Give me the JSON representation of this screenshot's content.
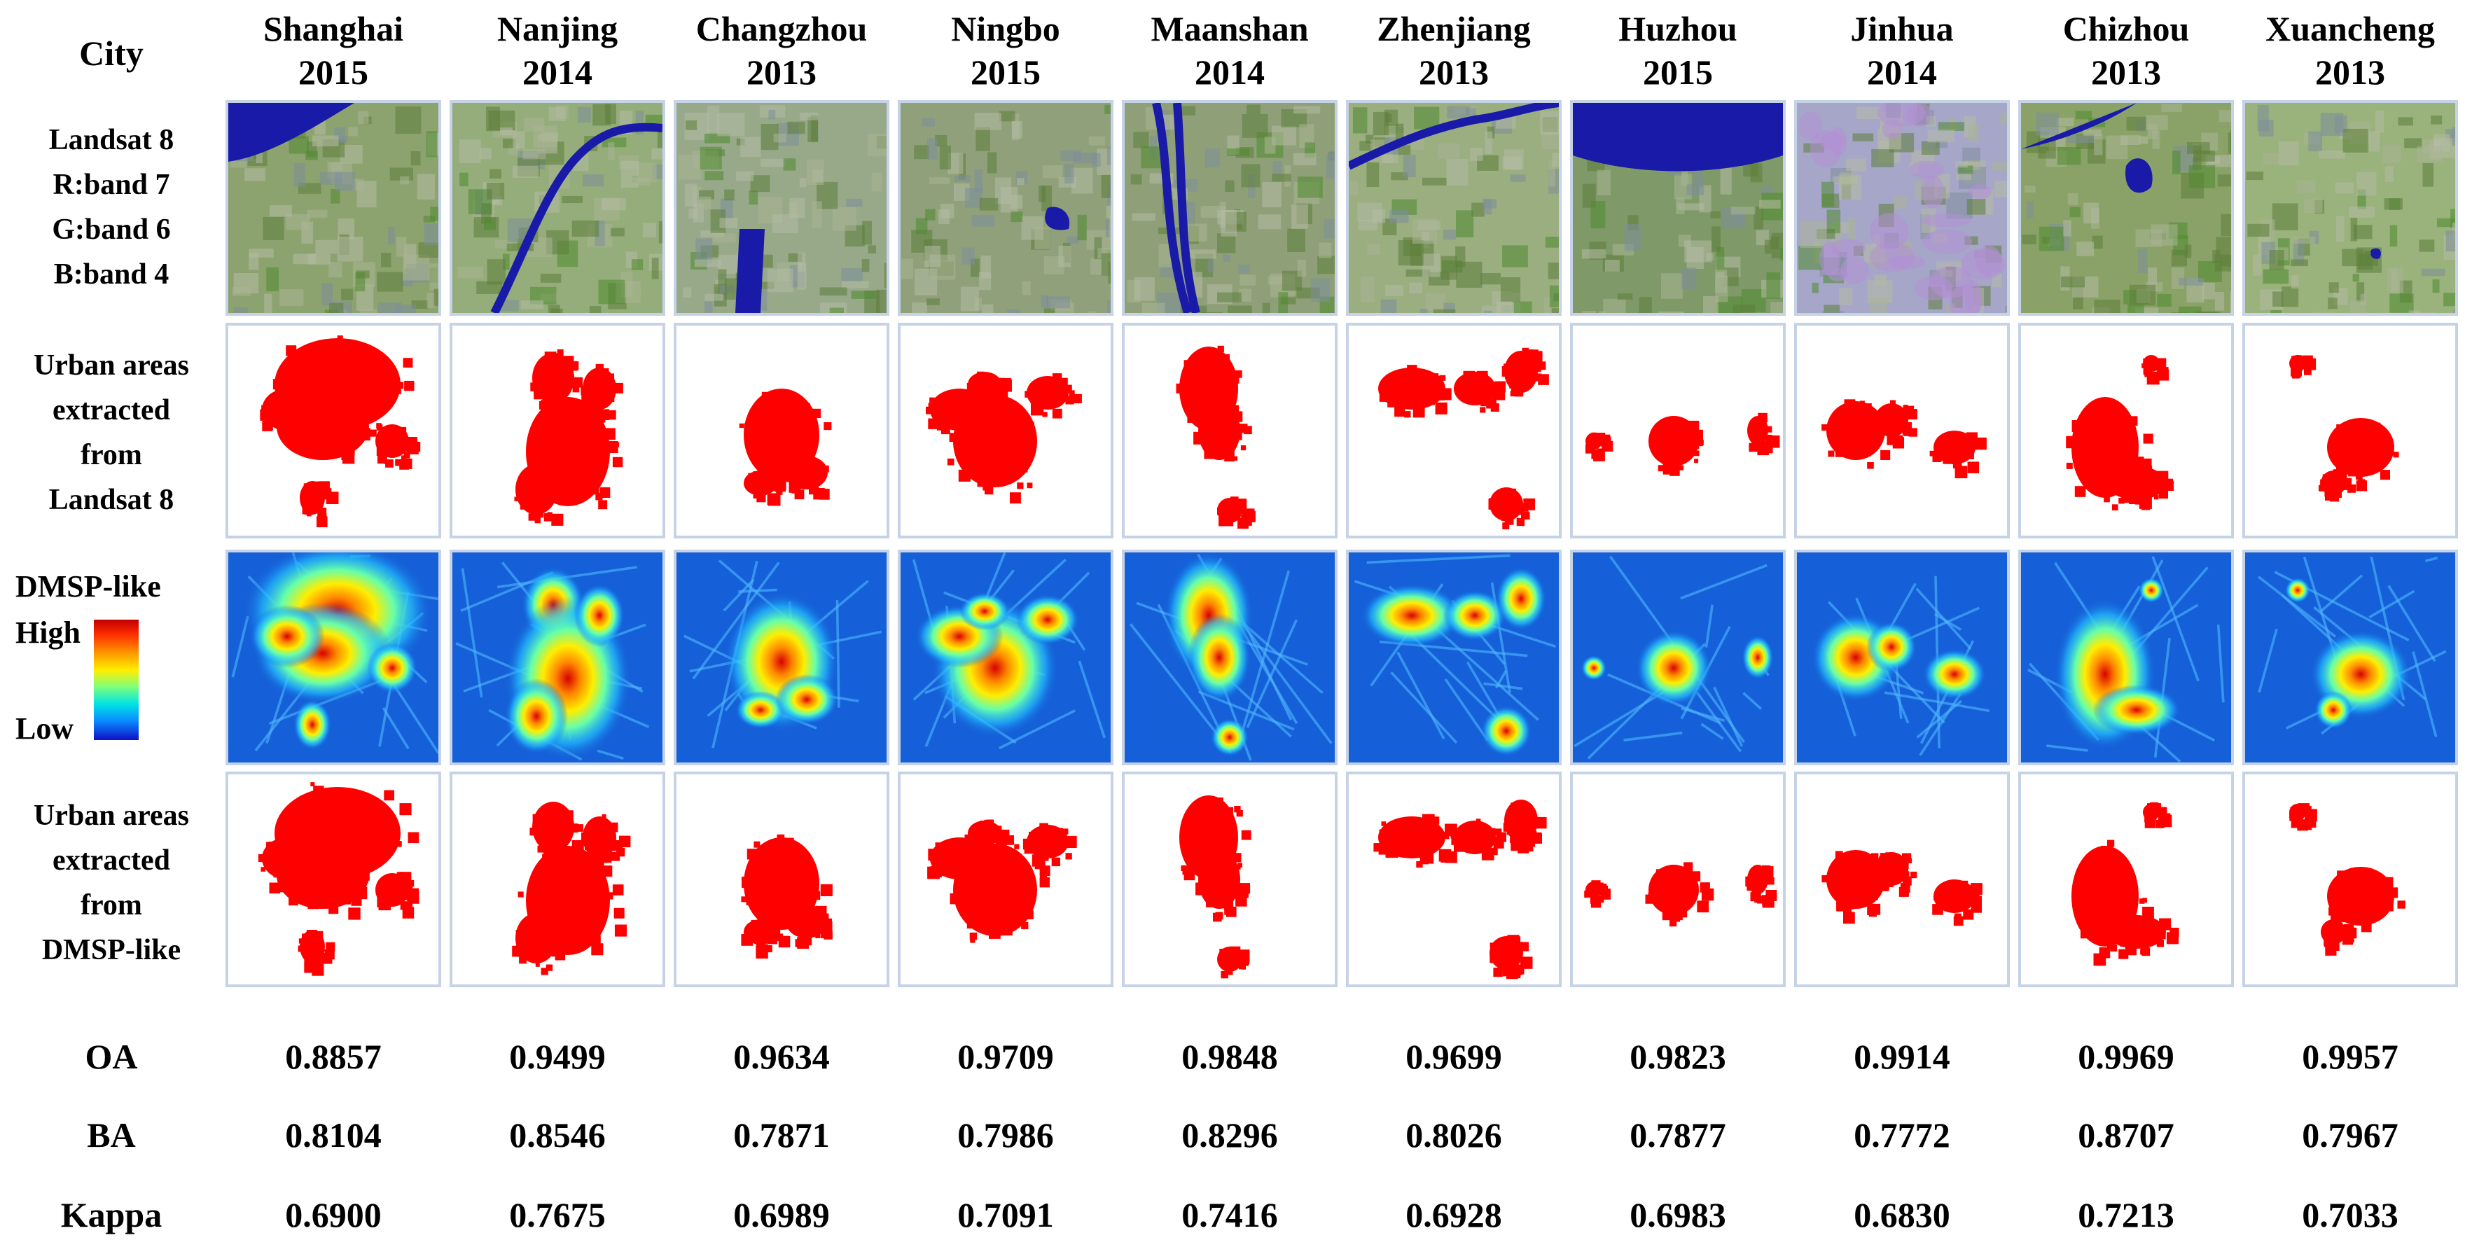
{
  "header": {
    "city_label": "City"
  },
  "cities": [
    {
      "name": "Shanghai",
      "year": "2015"
    },
    {
      "name": "Nanjing",
      "year": "2014"
    },
    {
      "name": "Changzhou",
      "year": "2013"
    },
    {
      "name": "Ningbo",
      "year": "2015"
    },
    {
      "name": "Maanshan",
      "year": "2014"
    },
    {
      "name": "Zhenjiang",
      "year": "2013"
    },
    {
      "name": "Huzhou",
      "year": "2015"
    },
    {
      "name": "Jinhua",
      "year": "2014"
    },
    {
      "name": "Chizhou",
      "year": "2013"
    },
    {
      "name": "Xuancheng",
      "year": "2013"
    }
  ],
  "row_labels": {
    "landsat": [
      "Landsat 8",
      "R:band 7",
      "G:band 6",
      "B:band 4"
    ],
    "urban_landsat": [
      "Urban areas",
      "extracted",
      "from",
      "Landsat 8"
    ],
    "dmsp": {
      "title": "DMSP-like",
      "high": "High",
      "low": "Low"
    },
    "urban_dmsp": [
      "Urban areas",
      "extracted",
      "from",
      "DMSP-like"
    ]
  },
  "colors": {
    "urban": "#ff0000",
    "landsat_green": "#8aa36a",
    "water": "#1a1aa8",
    "dmsp_low": "#1560d8",
    "dmsp_high": "#d01010",
    "border": "#c6d2e6"
  },
  "metrics": [
    {
      "label": "OA",
      "values": [
        "0.8857",
        "0.9499",
        "0.9634",
        "0.9709",
        "0.9848",
        "0.9699",
        "0.9823",
        "0.9914",
        "0.9969",
        "0.9957"
      ]
    },
    {
      "label": "BA",
      "values": [
        "0.8104",
        "0.8546",
        "0.7871",
        "0.7986",
        "0.8296",
        "0.8026",
        "0.7877",
        "0.7772",
        "0.8707",
        "0.7967"
      ]
    },
    {
      "label": "Kappa",
      "values": [
        "0.6900",
        "0.7675",
        "0.6989",
        "0.7091",
        "0.7416",
        "0.6928",
        "0.6983",
        "0.6830",
        "0.7213",
        "0.7033"
      ]
    }
  ]
}
